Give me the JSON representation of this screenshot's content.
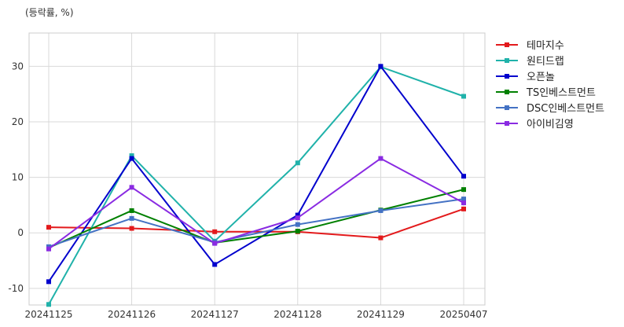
{
  "chart_data": {
    "type": "line",
    "unit_label": "(등락률, %)",
    "categories": [
      "20241125",
      "20241126",
      "20241127",
      "20241128",
      "20241129",
      "20250407"
    ],
    "ylim": [
      -13,
      36
    ],
    "yticks": [
      -10,
      0,
      10,
      20,
      30
    ],
    "grid": true,
    "legend_position": "right-top",
    "series": [
      {
        "name": "테마지수",
        "color": "#e31a1c",
        "values": [
          1.0,
          0.8,
          0.2,
          0.2,
          -0.9,
          4.3
        ]
      },
      {
        "name": "원티드랩",
        "color": "#20b2aa",
        "values": [
          -12.9,
          13.9,
          -1.5,
          12.6,
          29.9,
          24.6
        ]
      },
      {
        "name": "오픈놀",
        "color": "#0000cd",
        "values": [
          -8.8,
          13.4,
          -5.7,
          3.2,
          30.0,
          10.2
        ]
      },
      {
        "name": "TS인베스트먼트",
        "color": "#008000",
        "values": [
          -2.7,
          4.0,
          -1.8,
          0.3,
          4.1,
          7.8
        ]
      },
      {
        "name": "DSC인베스트먼트",
        "color": "#4472c4",
        "values": [
          -2.5,
          2.6,
          -1.7,
          1.5,
          4.0,
          6.1
        ]
      },
      {
        "name": "아이비김영",
        "color": "#8a2be2",
        "values": [
          -2.9,
          8.2,
          -1.9,
          2.7,
          13.4,
          5.4
        ]
      }
    ]
  }
}
